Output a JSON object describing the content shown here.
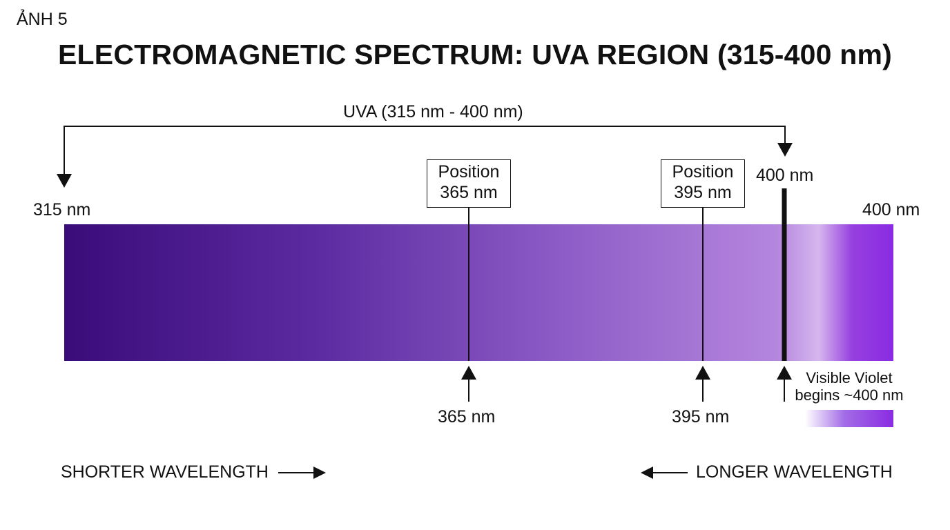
{
  "figure_label": "ẢNH 5",
  "title": "ELECTROMAGNETIC SPECTRUM: UVA REGION (315-400 nm)",
  "range_label": "UVA (315 nm - 400 nm)",
  "spectrum": {
    "start_label": "315 nm",
    "end_label": "400 nm",
    "boundary_label": "400 nm",
    "gradient_colors": [
      "#3a0c7a",
      "#5b2aa0",
      "#8d5cc6",
      "#b586de",
      "#8a2be2"
    ]
  },
  "positions": [
    {
      "title": "Position",
      "value_label": "365 nm",
      "bottom_label": "365 nm",
      "nm": 365
    },
    {
      "title": "Position",
      "value_label": "395 nm",
      "bottom_label": "395 nm",
      "nm": 395
    }
  ],
  "visible_note": {
    "line1": "Visible Violet",
    "line2": "begins ~400 nm",
    "swatch_color": "#8a2be2"
  },
  "direction_labels": {
    "shorter": "SHORTER WAVELENGTH",
    "longer": "LONGER WAVELENGTH"
  }
}
